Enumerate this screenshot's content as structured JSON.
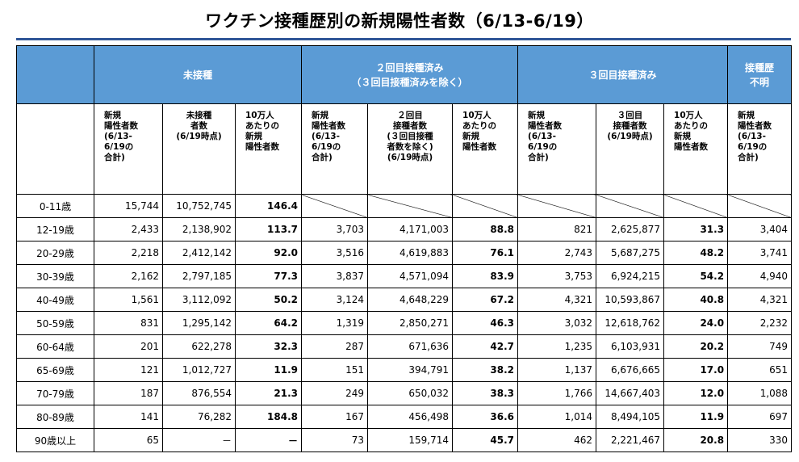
{
  "title": "ワクチン接種歴別の新規陽性者数（6/13-6/19）",
  "groups": {
    "unvaccinated": "未接種",
    "two_dose": "２回目接種済み\n（３回目接種済みを除く）",
    "three_dose": "３回目接種済み",
    "unknown": "接種歴\n不明"
  },
  "subheaders": {
    "unvac_cases": "新規\n陽性者数\n(6/13-\n6/19の\n合計)",
    "unvac_pop": "未接種\n者数\n(6/19時点)",
    "unvac_rate": "10万人\nあたりの\n新規\n陽性者数",
    "two_cases": "新規\n陽性者数\n(6/13-\n6/19の\n合計)",
    "two_pop": "２回目\n接種者数\n(３回目接種\n者数を除く)\n(6/19時点)",
    "two_rate": "10万人\nあたりの\n新規\n陽性者数",
    "three_cases": "新規\n陽性者数\n(6/13-\n6/19の\n合計)",
    "three_pop": "３回目\n接種者数\n(6/19時点)",
    "three_rate": "10万人\nあたりの\n新規\n陽性者数",
    "unknown_cases": "新規\n陽性者数\n(6/13-\n6/19の\n合計)"
  },
  "rows": [
    {
      "age": "0-11歳",
      "c1": "15,744",
      "c2": "10,752,745",
      "c3": "146.4",
      "c4": "",
      "c5": "",
      "c6": "",
      "c7": "",
      "c8": "",
      "c9": "",
      "c10": ""
    },
    {
      "age": "12-19歳",
      "c1": "2,433",
      "c2": "2,138,902",
      "c3": "113.7",
      "c4": "3,703",
      "c5": "4,171,003",
      "c6": "88.8",
      "c7": "821",
      "c8": "2,625,877",
      "c9": "31.3",
      "c10": "3,404"
    },
    {
      "age": "20-29歳",
      "c1": "2,218",
      "c2": "2,412,142",
      "c3": "92.0",
      "c4": "3,516",
      "c5": "4,619,883",
      "c6": "76.1",
      "c7": "2,743",
      "c8": "5,687,275",
      "c9": "48.2",
      "c10": "3,741"
    },
    {
      "age": "30-39歳",
      "c1": "2,162",
      "c2": "2,797,185",
      "c3": "77.3",
      "c4": "3,837",
      "c5": "4,571,094",
      "c6": "83.9",
      "c7": "3,753",
      "c8": "6,924,215",
      "c9": "54.2",
      "c10": "4,940"
    },
    {
      "age": "40-49歳",
      "c1": "1,561",
      "c2": "3,112,092",
      "c3": "50.2",
      "c4": "3,124",
      "c5": "4,648,229",
      "c6": "67.2",
      "c7": "4,321",
      "c8": "10,593,867",
      "c9": "40.8",
      "c10": "4,321"
    },
    {
      "age": "50-59歳",
      "c1": "831",
      "c2": "1,295,142",
      "c3": "64.2",
      "c4": "1,319",
      "c5": "2,850,271",
      "c6": "46.3",
      "c7": "3,032",
      "c8": "12,618,762",
      "c9": "24.0",
      "c10": "2,232"
    },
    {
      "age": "60-64歳",
      "c1": "201",
      "c2": "622,278",
      "c3": "32.3",
      "c4": "287",
      "c5": "671,636",
      "c6": "42.7",
      "c7": "1,235",
      "c8": "6,103,931",
      "c9": "20.2",
      "c10": "749"
    },
    {
      "age": "65-69歳",
      "c1": "121",
      "c2": "1,012,727",
      "c3": "11.9",
      "c4": "151",
      "c5": "394,791",
      "c6": "38.2",
      "c7": "1,137",
      "c8": "6,676,665",
      "c9": "17.0",
      "c10": "651"
    },
    {
      "age": "70-79歳",
      "c1": "187",
      "c2": "876,554",
      "c3": "21.3",
      "c4": "249",
      "c5": "650,032",
      "c6": "38.3",
      "c7": "1,766",
      "c8": "14,667,403",
      "c9": "12.0",
      "c10": "1,088"
    },
    {
      "age": "80-89歳",
      "c1": "141",
      "c2": "76,282",
      "c3": "184.8",
      "c4": "167",
      "c5": "456,498",
      "c6": "36.6",
      "c7": "1,014",
      "c8": "8,494,105",
      "c9": "11.9",
      "c10": "697"
    },
    {
      "age": "90歳以上",
      "c1": "65",
      "c2": "－",
      "c3": "－",
      "c4": "73",
      "c5": "159,714",
      "c6": "45.7",
      "c7": "462",
      "c8": "2,221,467",
      "c9": "20.8",
      "c10": "330"
    }
  ]
}
